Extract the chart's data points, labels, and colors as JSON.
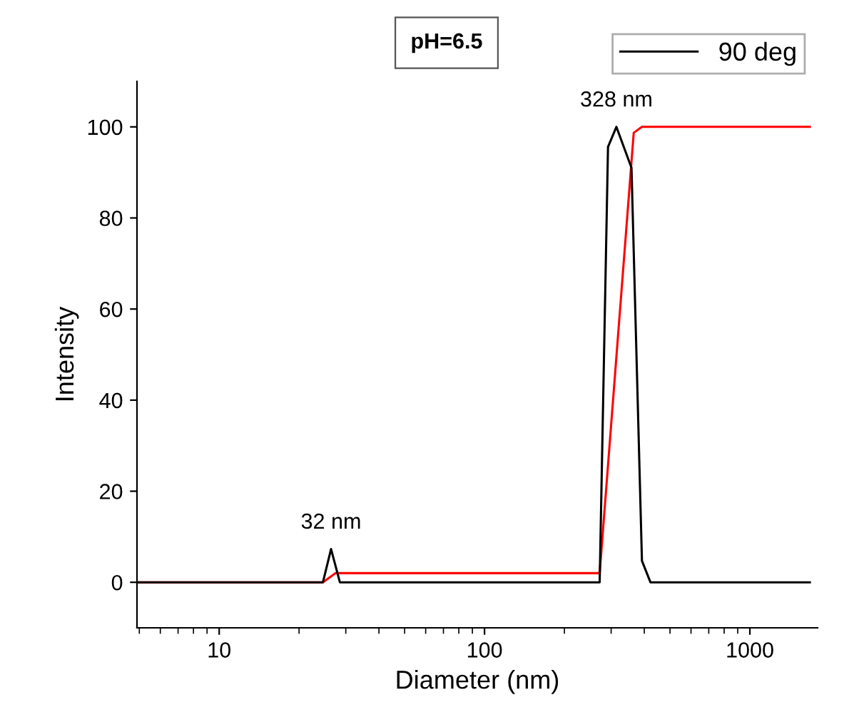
{
  "chart_data": {
    "type": "line",
    "title": "pH=6.5",
    "xlabel": "Diameter (nm)",
    "ylabel": "Intensity",
    "log": "x",
    "xlim": [
      4.9,
      1800
    ],
    "xticks": [
      10,
      100,
      1000
    ],
    "ylim": [
      -10,
      110
    ],
    "yticks": [
      0,
      20,
      40,
      60,
      80,
      100
    ],
    "grid": false,
    "legend": "top right",
    "marker": "none",
    "line_style": "solid",
    "series": [
      {
        "name": "90 deg",
        "color": "#000000",
        "x": [
          4.9,
          24.6,
          26.4,
          28.5,
          271.6,
          292,
          314,
          358,
          392,
          422,
          1683
        ],
        "values": [
          0,
          0,
          7.3,
          0,
          0,
          95.6,
          100,
          91,
          4.7,
          0,
          0
        ]
      },
      {
        "color": "#ff0000",
        "x": [
          4.9,
          24.6,
          27.4,
          271.6,
          365,
          392,
          1683
        ],
        "values": [
          0,
          0,
          2,
          2,
          98.7,
          100,
          100
        ]
      }
    ],
    "annotations": [
      {
        "text": "328 nm",
        "x": 314,
        "y": 100
      },
      {
        "text": "32 nm",
        "x": 26.4,
        "y": 7.3
      }
    ]
  }
}
